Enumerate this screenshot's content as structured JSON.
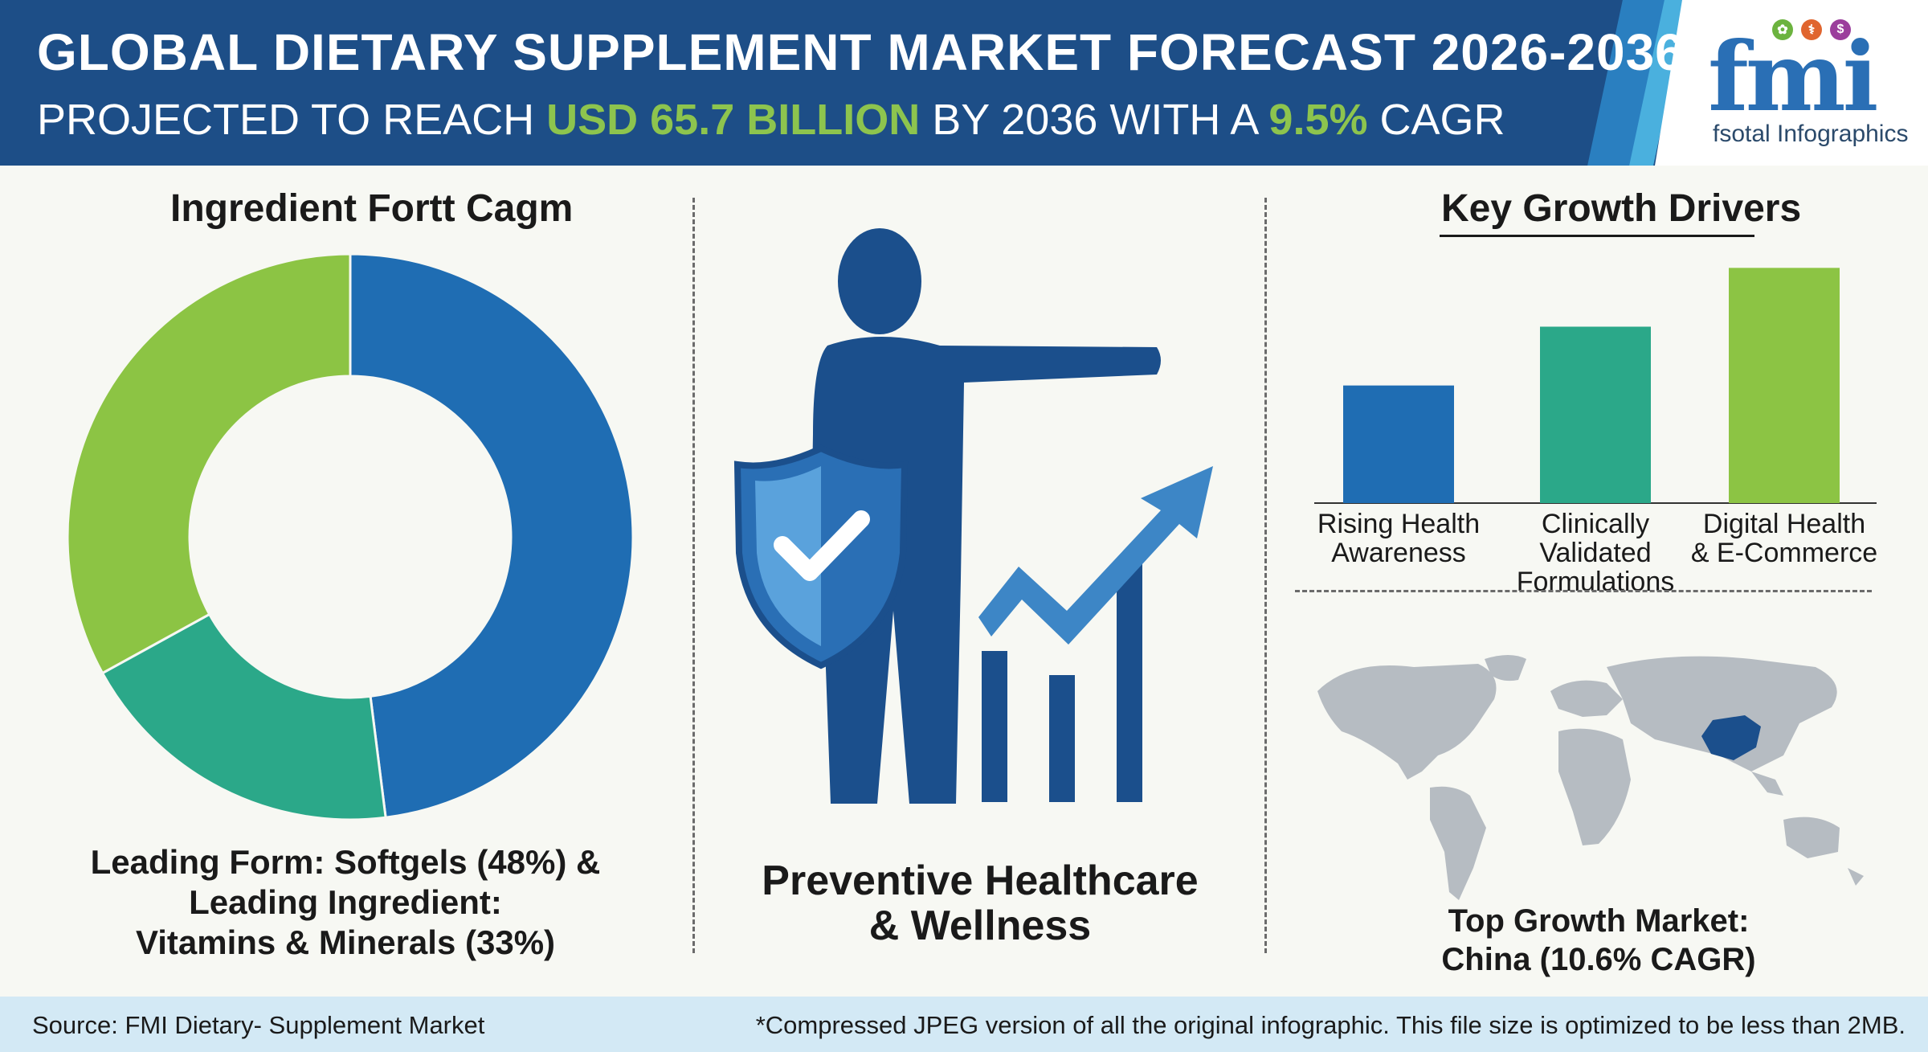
{
  "header": {
    "title": "GLOBAL DIETARY SUPPLEMENT MARKET FORECAST 2026-2036",
    "subtitle_pre": "PROJECTED TO REACH ",
    "subtitle_value": "USD 65.7 BILLION",
    "subtitle_mid": " BY 2036 WITH A ",
    "subtitle_cagr": "9.5%",
    "subtitle_post": " CAGR"
  },
  "logo": {
    "text": "fmi",
    "subtext": "fsotal Infographics",
    "icons": [
      "leaf-icon",
      "flask-icon",
      "dollar-icon"
    ]
  },
  "colors": {
    "header_bg": "#1d4e87",
    "highlight": "#8dc44e",
    "blue": "#1f6db3",
    "teal": "#2ba889",
    "green": "#8cc444",
    "map_gray": "#b6bcc2",
    "map_highlight": "#1b4f8c"
  },
  "left_panel": {
    "title": "Ingredient Fortt Cagm",
    "caption_line1": "Leading Form: Softgels (48%) &",
    "caption_line2": "Leading Ingredient:",
    "caption_line3": "Vitamins & Minerals (33%)"
  },
  "center_panel": {
    "caption_line1": "Preventive Healthcare",
    "caption_line2": "& Wellness",
    "icons": [
      "person-pointing-icon",
      "shield-check-icon",
      "growth-arrow-icon"
    ]
  },
  "right_panel": {
    "title": "Key Growth Drivers",
    "map_caption_line1": "Top Growth Market:",
    "map_caption_line2": "China (10.6% CAGR)"
  },
  "chart_data": [
    {
      "type": "pie",
      "title": "Ingredient Fortt Cagm",
      "donut": true,
      "slices": [
        {
          "label": "Softgels",
          "value": 48,
          "color": "#1f6db3"
        },
        {
          "label": "",
          "value": 19,
          "color": "#2ba889"
        },
        {
          "label": "Vitamins & Minerals",
          "value": 33,
          "color": "#8cc444"
        }
      ]
    },
    {
      "type": "bar",
      "title": "Key Growth Drivers",
      "categories": [
        [
          "Rising Health",
          "Awareness"
        ],
        [
          "Clinically Validated",
          "Formulations"
        ],
        [
          "Digital Health",
          "& E-Commerce"
        ]
      ],
      "values": [
        1,
        1.5,
        2
      ],
      "colors": [
        "#1f6db3",
        "#2ba889",
        "#8cc444"
      ],
      "ylim": [
        0,
        2.05
      ],
      "grid": false,
      "axis_labels_shown": false
    }
  ],
  "footer": {
    "source": "Source: FMI Dietary- Supplement Market",
    "note": "*Compressed JPEG version of all the original infographic. This file size is optimized to be less than 2MB."
  }
}
